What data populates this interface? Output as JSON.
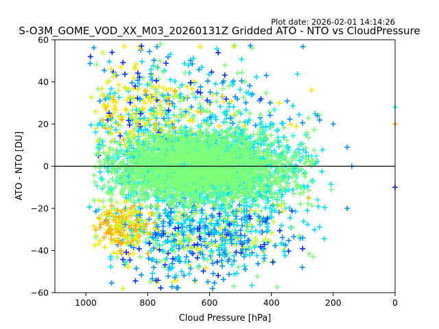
{
  "plot_date": "Plot date: 2026-02-01 14:14:26",
  "chart_data": {
    "type": "scatter",
    "title": "S-O3M_GOME_VOD_XX_M03_20260131Z Gridded ATO - NTO vs CloudPressure",
    "xlabel": "Cloud Pressure [hPa]",
    "ylabel": "ATO - NTO [DU]",
    "xlim": [
      1100,
      0
    ],
    "ylim": [
      -60,
      60
    ],
    "xticks": [
      1000,
      800,
      600,
      400,
      200,
      0
    ],
    "yticks": [
      -60,
      -40,
      -20,
      0,
      20,
      40,
      60
    ],
    "reference_line_y": 0,
    "marker": "+",
    "colors": {
      "blue": "#0029ff",
      "azure": "#0090ff",
      "cyan": "#00dcff",
      "aqua": "#26ffd1",
      "green": "#7dff7a",
      "lime": "#c4ff33",
      "yellow": "#ffe600",
      "orange": "#ffb000"
    },
    "clusters": [
      {
        "name": "core",
        "x_center": 620,
        "x_spread": 170,
        "x_min": 970,
        "x_max": 250,
        "y_center": 0,
        "y_spread": 12,
        "dominant_color": "green"
      },
      {
        "name": "upper-left",
        "x_center": 850,
        "x_spread": 100,
        "y_center": 25,
        "y_spread": 15,
        "dominant_color": "yellow"
      },
      {
        "name": "lower-left",
        "x_center": 880,
        "x_spread": 80,
        "y_center": -30,
        "y_spread": 8,
        "dominant_color": "orange"
      },
      {
        "name": "lower-middle",
        "x_center": 600,
        "x_spread": 150,
        "y_center": -35,
        "y_spread": 10,
        "dominant_color": "azure"
      }
    ],
    "outliers": [
      {
        "x": 0,
        "y": 28,
        "color": "aqua"
      },
      {
        "x": 0,
        "y": 20,
        "color": "orange"
      },
      {
        "x": 0,
        "y": -10,
        "color": "blue"
      },
      {
        "x": 140,
        "y": 0,
        "color": "azure"
      },
      {
        "x": 155,
        "y": 9,
        "color": "azure"
      },
      {
        "x": 155,
        "y": -20,
        "color": "azure"
      },
      {
        "x": 200,
        "y": 20,
        "color": "azure"
      },
      {
        "x": 820,
        "y": 57,
        "color": "blue"
      },
      {
        "x": 985,
        "y": 52,
        "color": "blue"
      },
      {
        "x": 915,
        "y": 54,
        "color": "blue"
      },
      {
        "x": 590,
        "y": -58,
        "color": "azure"
      },
      {
        "x": 690,
        "y": -50,
        "color": "cyan"
      },
      {
        "x": 720,
        "y": -55,
        "color": "lime"
      },
      {
        "x": 880,
        "y": -58,
        "color": "lime"
      },
      {
        "x": 280,
        "y": -15,
        "color": "orange"
      },
      {
        "x": 300,
        "y": -48,
        "color": "azure"
      }
    ]
  }
}
